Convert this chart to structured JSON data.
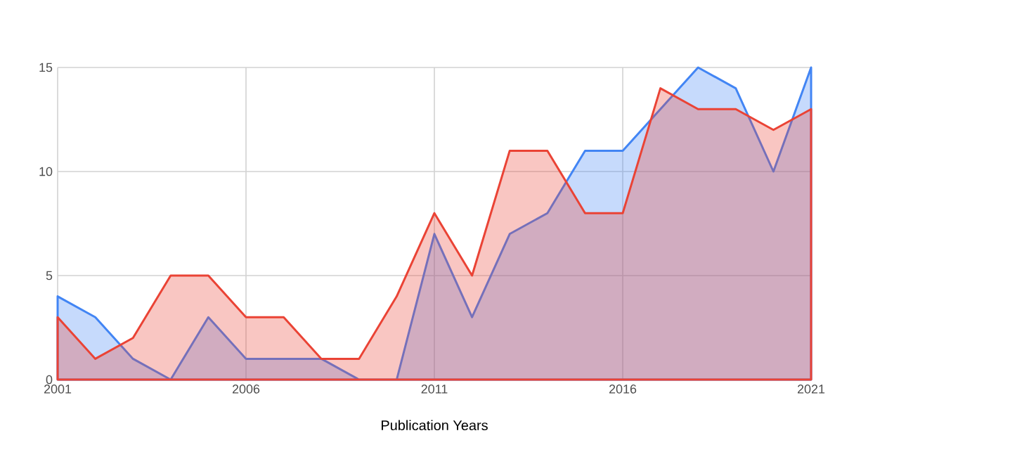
{
  "chart_data": {
    "type": "area",
    "xlabel": "Publication Years",
    "x": [
      2001,
      2002,
      2003,
      2004,
      2005,
      2006,
      2007,
      2008,
      2009,
      2010,
      2011,
      2012,
      2013,
      2014,
      2015,
      2016,
      2017,
      2018,
      2019,
      2020,
      2021
    ],
    "series": [
      {
        "color": "#4285f4",
        "values": [
          4,
          3,
          1,
          0,
          3,
          1,
          1,
          1,
          0,
          0,
          7,
          3,
          7,
          8,
          11,
          11,
          13,
          15,
          14,
          10,
          15
        ]
      },
      {
        "color": "#ea4335",
        "values": [
          3,
          1,
          2,
          5,
          5,
          3,
          3,
          1,
          1,
          4,
          8,
          5,
          11,
          11,
          8,
          8,
          14,
          13,
          13,
          12,
          13
        ]
      }
    ],
    "xlim": [
      2001,
      2021
    ],
    "xticks": [
      2001,
      2006,
      2011,
      2016,
      2021
    ],
    "ylim": [
      0,
      15
    ],
    "yticks": [
      0,
      5,
      10,
      15
    ],
    "grid": true
  }
}
